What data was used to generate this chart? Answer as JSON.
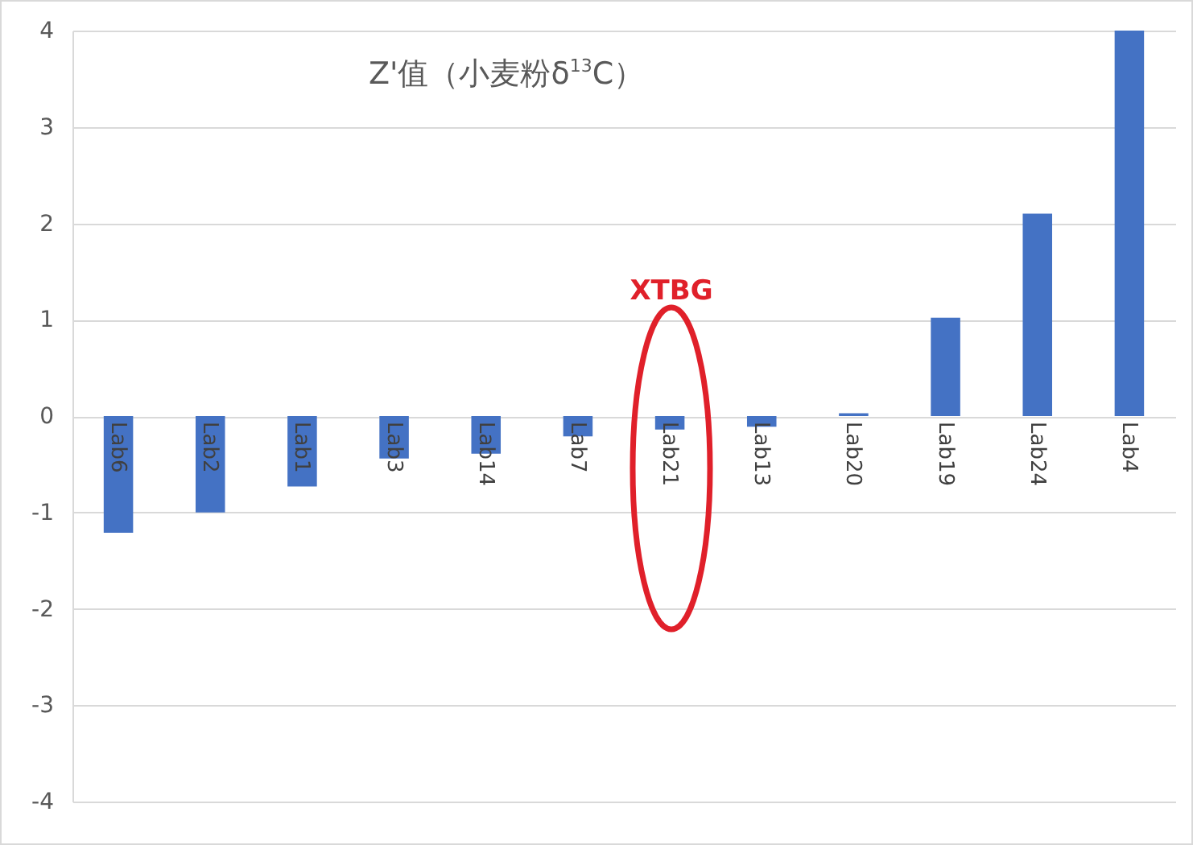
{
  "chart_data": {
    "type": "bar",
    "title": "Z'值（小麦粉δ$^{13}$C）",
    "categories": [
      "Lab6",
      "Lab2",
      "Lab1",
      "Lab3",
      "Lab14",
      "Lab7",
      "Lab21",
      "Lab13",
      "Lab20",
      "Lab19",
      "Lab24",
      "Lab4"
    ],
    "values": [
      -1.21,
      -1.0,
      -0.73,
      -0.44,
      -0.39,
      -0.21,
      -0.14,
      -0.11,
      0.03,
      1.02,
      2.1,
      4.0
    ],
    "color": "#4472c4",
    "ylim": [
      -4,
      4
    ],
    "yticks": [
      -4,
      -3,
      -2,
      -1,
      0,
      1,
      2,
      3,
      4
    ],
    "grid": "y",
    "annotations": [
      "XTBG"
    ]
  }
}
